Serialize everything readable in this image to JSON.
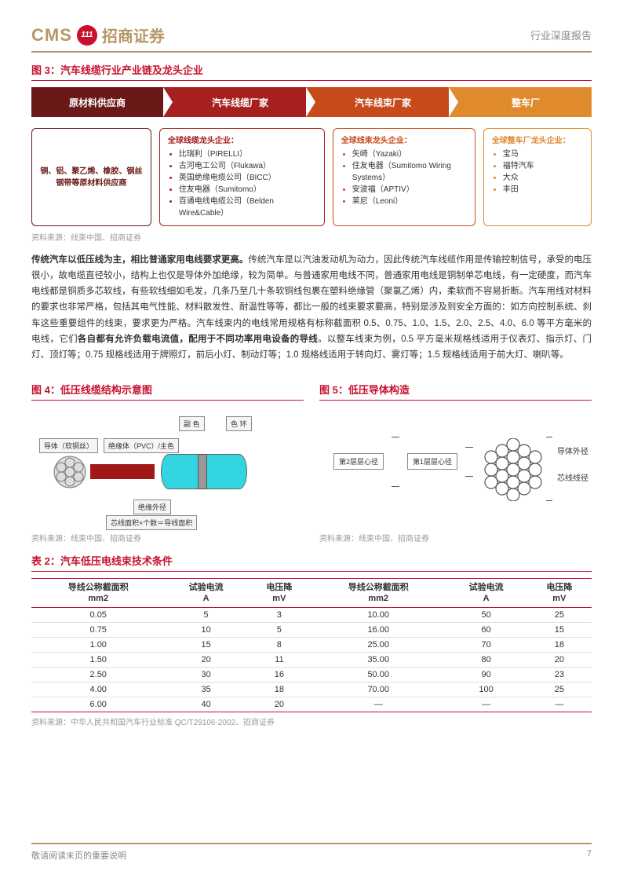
{
  "header": {
    "cms": "CMS",
    "badge": "111",
    "cn": "招商证券",
    "right": "行业深度报告"
  },
  "fig3": {
    "title": "图 3：汽车线缆行业产业链及龙头企业",
    "chain": [
      "原材料供应商",
      "汽车线缆厂家",
      "汽车线束厂家",
      "整车厂"
    ],
    "box1": "铜、铝、聚乙烯、橡胶、钢丝钢带等原材料供应商",
    "box2_title": "全球线缆龙头企业：",
    "box2_items": [
      "比瑞利（PIRELLI）",
      "古河电工公司（Flukawa）",
      "英国绝缘电缆公司（BICC）",
      "住友电器（Sumitomo）",
      "百通电线电缆公司（Belden Wire&Cable）"
    ],
    "box3_title": "全球线束龙头企业：",
    "box3_items": [
      "矢崎（Yazaki）",
      "住友电器（Sumitomo Wiring Systems）",
      "安波福（APTIV）",
      "莱尼（Leoni）"
    ],
    "box4_title": "全球整车厂龙头企业：",
    "box4_items": [
      "宝马",
      "福特汽车",
      "大众",
      "丰田"
    ],
    "source": "资料来源：线束中国、招商证券"
  },
  "body": {
    "lead": "传统汽车以低压线为主，相比普通家用电线要求更高。",
    "p1a": "传统汽车是以汽油发动机为动力，因此传统汽车线缆作用是传输控制信号，承受的电压很小，故电缆直径较小，结构上也仅是导体外加绝缘，较为简单。与普通家用电线不同，普通家用电线是铜制单芯电线，有一定硬度，而汽车电线都是铜质多芯软线，有些软线细如毛发，几条乃至几十条软铜线包裹在塑料绝缘管（聚氯乙烯）内，柔软而不容易折断。汽车用线对材料的要求也非常严格，包括其电气性能、材料散发性、耐温性等等，都比一般的线束要求要高，特别是涉及到安全方面的：如方向控制系统、刹车这些重要组件的线束，要求更为严格。汽车线束内的电线常用规格有标称截面积 0.5、0.75、1.0、1.5、2.0、2.5、4.0、6.0 等平方毫米的电线，它们",
    "bold2": "各自都有允许负载电流值，配用于不同功率用电设备的导线",
    "p1b": "。以整车线束为例，0.5 平方毫米规格线适用于仪表灯、指示灯、门灯、顶灯等；0.75 规格线适用于牌照灯，前后小灯、制动灯等；1.0 规格线适用于转向灯、雾灯等；1.5 规格线适用于前大灯、喇叭等。"
  },
  "fig4": {
    "title": "图 4：低压线缆结构示意图",
    "labels": {
      "conductor": "导体（软铜丝）",
      "insul": "绝缘体（PVC）/主色",
      "sub": "副 色",
      "ring": "色 环",
      "outer": "绝缘外径",
      "area": "芯线面积×个数＝导线面积"
    },
    "source": "资料来源：线束中国、招商证券"
  },
  "fig5": {
    "title": "图 5：低压导体构造",
    "labels": {
      "layer2": "第2层层心径",
      "layer1": "第1层层心径",
      "outer": "导体外径",
      "core": "芯线线径"
    },
    "source": "资料来源：线束中国、招商证券"
  },
  "table2": {
    "title": "表 2：汽车低压电线束技术条件",
    "headers": [
      "导线公称截面积\nmm2",
      "试验电流\nA",
      "电压降\nmV",
      "导线公称截面积\nmm2",
      "试验电流\nA",
      "电压降\nmV"
    ],
    "rows": [
      [
        "0.05",
        "5",
        "3",
        "10.00",
        "50",
        "25"
      ],
      [
        "0.75",
        "10",
        "5",
        "16.00",
        "60",
        "15"
      ],
      [
        "1.00",
        "15",
        "8",
        "25.00",
        "70",
        "18"
      ],
      [
        "1.50",
        "20",
        "11",
        "35.00",
        "80",
        "20"
      ],
      [
        "2.50",
        "30",
        "16",
        "50.00",
        "90",
        "23"
      ],
      [
        "4.00",
        "35",
        "18",
        "70.00",
        "100",
        "25"
      ],
      [
        "6.00",
        "40",
        "20",
        "—",
        "—",
        "—"
      ]
    ],
    "source": "资料来源：中华人民共和国汽车行业标准 QC/T29106-2002、招商证券"
  },
  "footer": {
    "left": "敬请阅读末页的重要说明",
    "page": "7"
  }
}
